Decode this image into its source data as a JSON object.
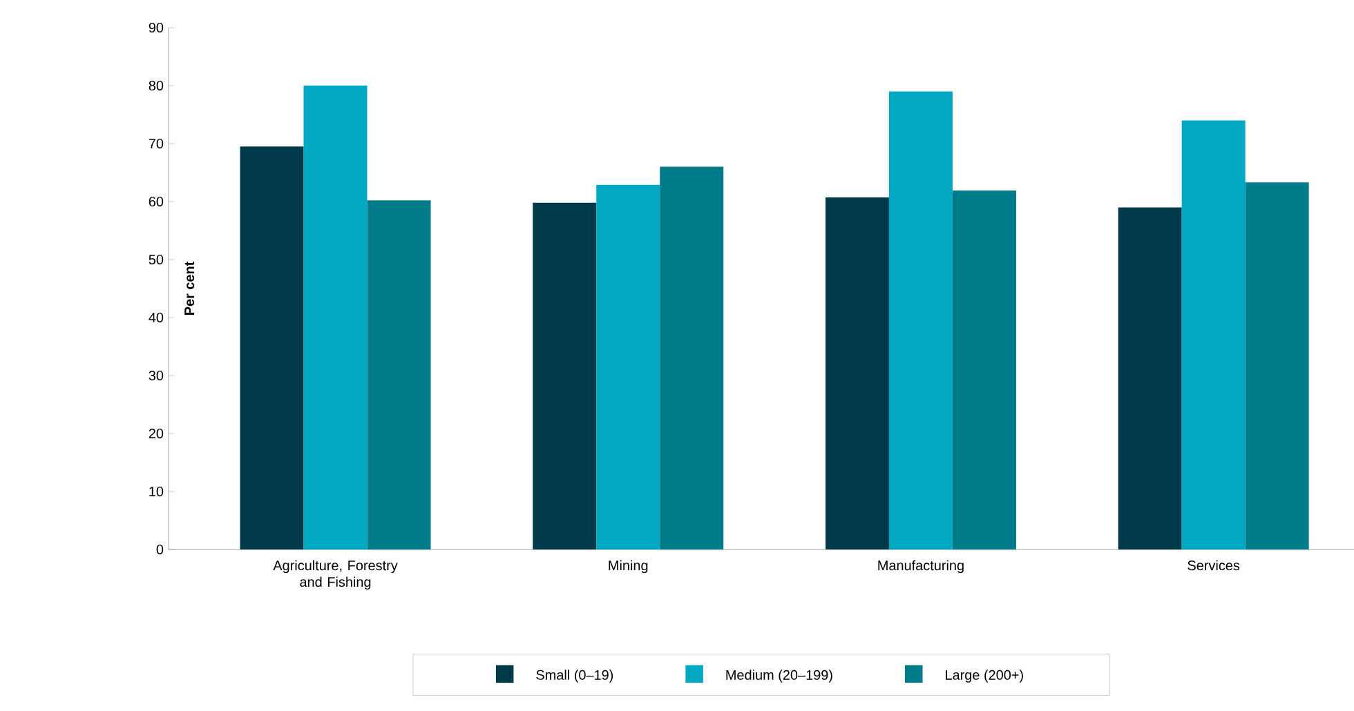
{
  "chart_data": {
    "type": "bar",
    "ylabel": "Per cent",
    "categories": [
      "Agriculture, Forestry and Fishing",
      "Mining",
      "Manufacturing",
      "Services"
    ],
    "series": [
      {
        "name": "Small (0–19)",
        "color": "#003a4a",
        "values": [
          69.5,
          59.8,
          60.7,
          59
        ]
      },
      {
        "name": "Medium (20–199)",
        "color": "#00a9c1",
        "values": [
          80,
          62.9,
          79,
          74
        ]
      },
      {
        "name": "Large (200+)",
        "color": "#007b8a",
        "values": [
          60.2,
          66,
          61.9,
          63.3
        ]
      }
    ],
    "ylim": [
      0,
      90
    ],
    "yticks": [
      0,
      10,
      20,
      30,
      40,
      50,
      60,
      70,
      80,
      90
    ],
    "grid": false,
    "legend": "bottom"
  }
}
